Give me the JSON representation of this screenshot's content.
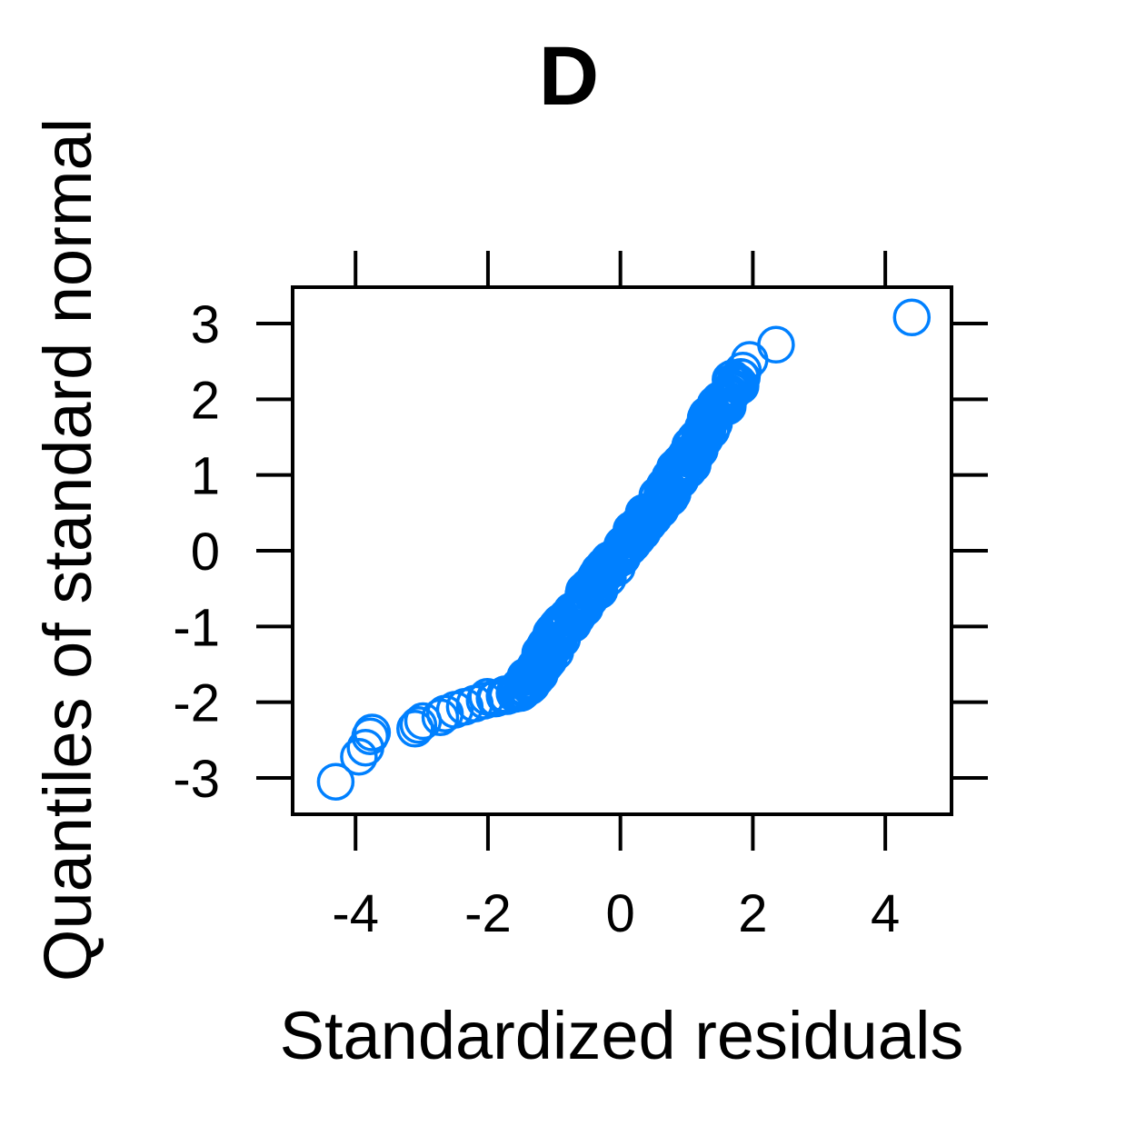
{
  "chart_data": {
    "type": "scatter",
    "title": "D",
    "xlabel": "Standardized residuals",
    "ylabel": "Quantiles of standard normal",
    "xlim": [
      -4.95,
      5.0
    ],
    "ylim": [
      -3.48,
      3.48
    ],
    "xticks": [
      -4,
      -2,
      0,
      2,
      4
    ],
    "yticks": [
      -3,
      -2,
      -1,
      0,
      1,
      2,
      3
    ],
    "xtick_labels": [
      "-4",
      "-2",
      "0",
      "2",
      "4"
    ],
    "ytick_labels": [
      "-3",
      "-2",
      "-1",
      "0",
      "1",
      "2",
      "3"
    ],
    "grid": false,
    "marker": "open-circle",
    "color": "#0080ff",
    "anchor_points": [
      [
        -4.3,
        -3.05
      ],
      [
        -3.95,
        -2.72
      ],
      [
        -3.85,
        -2.6
      ],
      [
        -3.78,
        -2.45
      ],
      [
        -3.75,
        -2.4
      ],
      [
        -3.1,
        -2.35
      ],
      [
        -3.05,
        -2.3
      ],
      [
        -2.98,
        -2.25
      ],
      [
        -2.72,
        -2.2
      ],
      [
        -2.65,
        -2.15
      ],
      [
        -2.5,
        -2.1
      ],
      [
        -2.35,
        -2.06
      ],
      [
        -2.2,
        -2.02
      ],
      [
        -2.05,
        -1.98
      ],
      [
        -1.9,
        -1.95
      ],
      [
        -1.75,
        -1.92
      ],
      [
        -1.6,
        -1.88
      ],
      [
        -1.45,
        -1.8
      ],
      [
        -1.3,
        -1.6
      ],
      [
        -1.15,
        -1.4
      ],
      [
        -1.0,
        -1.2
      ],
      [
        -0.85,
        -1.0
      ],
      [
        -0.7,
        -0.82
      ],
      [
        -0.55,
        -0.65
      ],
      [
        -0.4,
        -0.48
      ],
      [
        -0.25,
        -0.3
      ],
      [
        -0.1,
        -0.13
      ],
      [
        0.05,
        0.04
      ],
      [
        0.2,
        0.21
      ],
      [
        0.35,
        0.38
      ],
      [
        0.5,
        0.55
      ],
      [
        0.65,
        0.72
      ],
      [
        0.8,
        0.9
      ],
      [
        0.95,
        1.1
      ],
      [
        1.1,
        1.32
      ],
      [
        1.25,
        1.55
      ],
      [
        1.4,
        1.78
      ],
      [
        1.55,
        1.98
      ],
      [
        1.72,
        2.2
      ],
      [
        1.85,
        2.38
      ],
      [
        1.95,
        2.52
      ],
      [
        2.35,
        2.72
      ],
      [
        4.4,
        3.08
      ]
    ],
    "n_points": 300
  }
}
